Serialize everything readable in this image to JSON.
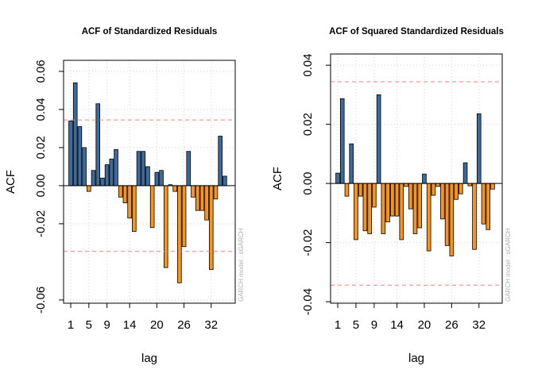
{
  "chart_data": [
    {
      "type": "bar",
      "title": "ACF of Standardized Residuals",
      "x_label": "lag",
      "y_label": "ACF",
      "side_note": "GARCH model : sGARCH",
      "x": [
        1,
        2,
        3,
        4,
        5,
        6,
        7,
        8,
        9,
        10,
        11,
        12,
        13,
        14,
        15,
        16,
        17,
        18,
        19,
        20,
        21,
        22,
        23,
        24,
        25,
        26,
        27,
        28,
        29,
        30,
        31,
        32,
        33,
        34,
        35
      ],
      "values": [
        0.034,
        0.054,
        0.031,
        0.02,
        -0.003,
        0.008,
        0.043,
        0.004,
        0.011,
        0.014,
        0.019,
        -0.006,
        -0.009,
        -0.017,
        -0.024,
        0.018,
        0.018,
        0.01,
        -0.022,
        0.007,
        0.008,
        -0.043,
        0.0005,
        -0.003,
        -0.051,
        -0.032,
        0.018,
        -0.006,
        -0.013,
        -0.013,
        -0.018,
        -0.044,
        -0.007,
        0.026,
        0.005
      ],
      "colors": {
        "positive": "#3f6a9c",
        "negative": "#f7941d"
      },
      "conf_limits": [
        0.0345,
        -0.0345
      ],
      "conf_color": "#f08080",
      "xlim": [
        -0.58,
        37.3
      ],
      "xticks": [
        1,
        5,
        9,
        14,
        20,
        26,
        32
      ],
      "ylim": [
        -0.0617,
        0.0658
      ],
      "yticks": [
        -0.06,
        -0.02,
        {
          "value": 0,
          "label": "0.00"
        },
        0.02,
        0.04,
        0.06
      ],
      "grid": true
    },
    {
      "type": "bar",
      "title": "ACF of Squared Standardized Residuals",
      "x_label": "lag",
      "y_label": "ACF",
      "side_note": "GARCH model : sGARCH",
      "x": [
        1,
        2,
        3,
        4,
        5,
        6,
        7,
        8,
        9,
        10,
        11,
        12,
        13,
        14,
        15,
        16,
        17,
        18,
        19,
        20,
        21,
        22,
        23,
        24,
        25,
        26,
        27,
        28,
        29,
        30,
        31,
        32,
        33,
        34,
        35
      ],
      "values": [
        0.0035,
        0.0287,
        -0.0043,
        0.0134,
        -0.019,
        -0.0043,
        -0.016,
        -0.017,
        -0.008,
        0.03,
        -0.017,
        -0.013,
        -0.011,
        -0.011,
        -0.019,
        -0.001,
        -0.0086,
        -0.017,
        -0.015,
        0.0032,
        -0.0228,
        -0.004,
        -0.001,
        -0.012,
        -0.021,
        -0.0245,
        -0.0054,
        -0.0035,
        0.007,
        -0.0008,
        -0.0223,
        0.0236,
        -0.0137,
        -0.0156,
        -0.0019
      ],
      "colors": {
        "positive": "#3f6a9c",
        "negative": "#f7941d"
      },
      "conf_limits": [
        0.0344,
        -0.0344
      ],
      "conf_color": "#f08080",
      "xlim": [
        -0.57,
        37.1
      ],
      "xticks": [
        1,
        5,
        9,
        14,
        20,
        26,
        32
      ],
      "ylim": [
        -0.0405,
        0.0438
      ],
      "yticks": [
        -0.04,
        -0.02,
        {
          "value": 0,
          "label": "0.00"
        },
        0.02,
        0.04
      ],
      "grid": true
    }
  ]
}
